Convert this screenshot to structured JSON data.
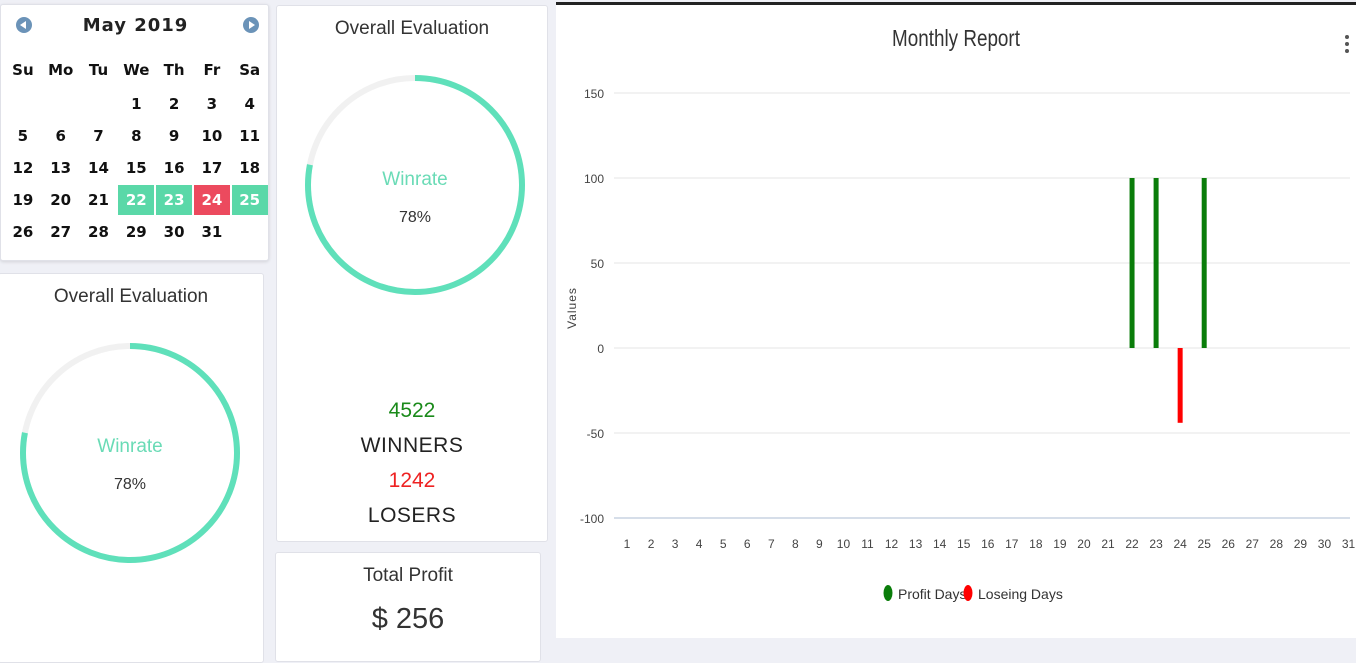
{
  "calendar": {
    "title": "May 2019",
    "weekdays": [
      "Su",
      "Mo",
      "Tu",
      "We",
      "Th",
      "Fr",
      "Sa"
    ],
    "weeks": [
      [
        "",
        "",
        "",
        "1",
        "2",
        "3",
        "4"
      ],
      [
        "5",
        "6",
        "7",
        "8",
        "9",
        "10",
        "11"
      ],
      [
        "12",
        "13",
        "14",
        "15",
        "16",
        "17",
        "18"
      ],
      [
        "19",
        "20",
        "21",
        "22",
        "23",
        "24",
        "25"
      ],
      [
        "26",
        "27",
        "28",
        "29",
        "30",
        "31",
        ""
      ]
    ],
    "profit_days": [
      "22",
      "23",
      "25"
    ],
    "losing_days": [
      "24"
    ],
    "profit_color": "#5ad8a8",
    "losing_color": "#ec4a5e"
  },
  "eval_left": {
    "title": "Overall Evaluation",
    "ring_label": "Winrate",
    "ring_value": "78%",
    "progress": 0.78
  },
  "eval_mid": {
    "title": "Overall Evaluation",
    "ring_label": "Winrate",
    "ring_value": "78%",
    "progress": 0.78,
    "winners_count": "4522",
    "winners_label": "WINNERS",
    "losers_count": "1242",
    "losers_label": "LOSERS",
    "winners_color": "#1a8a1a",
    "losers_color": "#ee2222"
  },
  "total_profit": {
    "title": "Total Profit",
    "value": "$ 256"
  },
  "colors": {
    "ring": "#5fe0ba",
    "ring_track": "#f1f1f1"
  },
  "chart_data": {
    "type": "bar",
    "title": "Monthly Report",
    "ylabel": "Values",
    "ylim": [
      -100,
      150
    ],
    "yticks": [
      150,
      100,
      50,
      0,
      -50,
      -100
    ],
    "categories": [
      "1",
      "2",
      "3",
      "4",
      "5",
      "6",
      "7",
      "8",
      "9",
      "10",
      "11",
      "12",
      "13",
      "14",
      "15",
      "16",
      "17",
      "18",
      "19",
      "20",
      "21",
      "22",
      "23",
      "24",
      "25",
      "26",
      "27",
      "28",
      "29",
      "30",
      "31"
    ],
    "series": [
      {
        "name": "Profit Days",
        "color": "#0a7d0a",
        "values": [
          0,
          0,
          0,
          0,
          0,
          0,
          0,
          0,
          0,
          0,
          0,
          0,
          0,
          0,
          0,
          0,
          0,
          0,
          0,
          0,
          0,
          100,
          100,
          0,
          100,
          0,
          0,
          0,
          0,
          0,
          0
        ]
      },
      {
        "name": "Loseing Days",
        "color": "#ff0000",
        "values": [
          0,
          0,
          0,
          0,
          0,
          0,
          0,
          0,
          0,
          0,
          0,
          0,
          0,
          0,
          0,
          0,
          0,
          0,
          0,
          0,
          0,
          0,
          0,
          -44,
          0,
          0,
          0,
          0,
          0,
          0,
          0
        ]
      }
    ],
    "grid": true,
    "legend": "bottom"
  }
}
